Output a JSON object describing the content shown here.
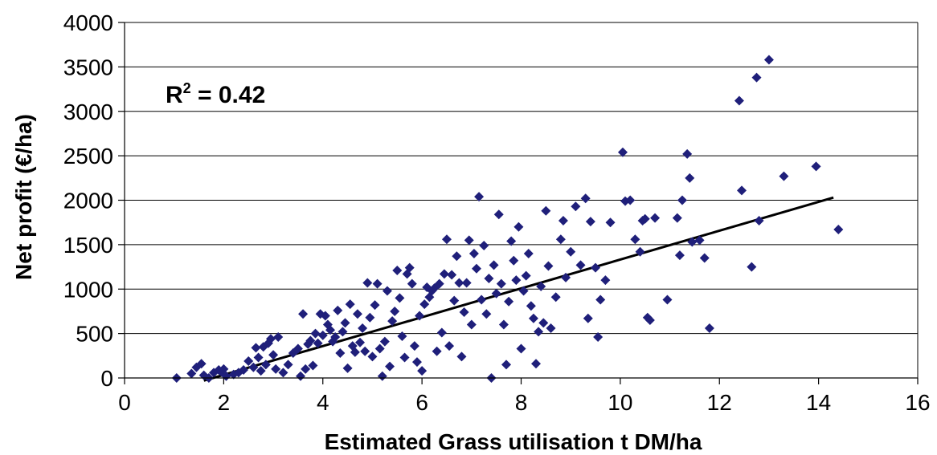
{
  "chart_data": {
    "type": "scatter",
    "title": "",
    "xlabel": "Estimated Grass utilisation t DM/ha",
    "ylabel": "Net profit (€/ha)",
    "xlim": [
      0,
      16
    ],
    "ylim": [
      0,
      4000
    ],
    "x_ticks": [
      "0",
      "2",
      "4",
      "6",
      "8",
      "10",
      "12",
      "14",
      "16"
    ],
    "y_ticks": [
      "0",
      "500",
      "1000",
      "1500",
      "2000",
      "2500",
      "3000",
      "3500",
      "4000"
    ],
    "grid": "horizontal",
    "legend": "none",
    "annotation": {
      "prefix": "R",
      "superscript": "2",
      "suffix": " = 0.42"
    },
    "colors": {
      "points": "#1f1f7a",
      "trendline": "#000000",
      "grid": "#000000"
    },
    "trendline": {
      "x": [
        1.6,
        14.3
      ],
      "y": [
        -30,
        2030
      ]
    },
    "series": [
      {
        "marker": "diamond",
        "points": [
          [
            1.05,
            0
          ],
          [
            1.35,
            50
          ],
          [
            1.45,
            120
          ],
          [
            1.55,
            160
          ],
          [
            1.6,
            30
          ],
          [
            1.7,
            0
          ],
          [
            1.8,
            60
          ],
          [
            1.9,
            90
          ],
          [
            1.95,
            70
          ],
          [
            2.0,
            100
          ],
          [
            2.05,
            20
          ],
          [
            2.2,
            40
          ],
          [
            2.3,
            60
          ],
          [
            2.4,
            90
          ],
          [
            2.5,
            190
          ],
          [
            2.6,
            120
          ],
          [
            2.65,
            340
          ],
          [
            2.7,
            230
          ],
          [
            2.75,
            80
          ],
          [
            2.8,
            350
          ],
          [
            2.85,
            150
          ],
          [
            2.9,
            390
          ],
          [
            2.95,
            440
          ],
          [
            3.0,
            260
          ],
          [
            3.05,
            100
          ],
          [
            3.1,
            460
          ],
          [
            3.2,
            60
          ],
          [
            3.3,
            150
          ],
          [
            3.4,
            280
          ],
          [
            3.5,
            330
          ],
          [
            3.55,
            20
          ],
          [
            3.6,
            720
          ],
          [
            3.65,
            100
          ],
          [
            3.7,
            380
          ],
          [
            3.75,
            420
          ],
          [
            3.8,
            140
          ],
          [
            3.85,
            500
          ],
          [
            3.9,
            390
          ],
          [
            3.95,
            720
          ],
          [
            4.0,
            480
          ],
          [
            4.05,
            700
          ],
          [
            4.1,
            600
          ],
          [
            4.15,
            540
          ],
          [
            4.2,
            410
          ],
          [
            4.25,
            460
          ],
          [
            4.3,
            760
          ],
          [
            4.35,
            280
          ],
          [
            4.4,
            520
          ],
          [
            4.45,
            620
          ],
          [
            4.5,
            110
          ],
          [
            4.55,
            830
          ],
          [
            4.6,
            360
          ],
          [
            4.65,
            290
          ],
          [
            4.7,
            720
          ],
          [
            4.75,
            400
          ],
          [
            4.8,
            560
          ],
          [
            4.85,
            300
          ],
          [
            4.9,
            1070
          ],
          [
            4.95,
            680
          ],
          [
            5.0,
            240
          ],
          [
            5.05,
            820
          ],
          [
            5.1,
            1060
          ],
          [
            5.15,
            330
          ],
          [
            5.2,
            20
          ],
          [
            5.25,
            410
          ],
          [
            5.3,
            980
          ],
          [
            5.35,
            130
          ],
          [
            5.4,
            640
          ],
          [
            5.45,
            750
          ],
          [
            5.5,
            1210
          ],
          [
            5.55,
            900
          ],
          [
            5.6,
            470
          ],
          [
            5.65,
            230
          ],
          [
            5.7,
            1170
          ],
          [
            5.75,
            1240
          ],
          [
            5.8,
            1060
          ],
          [
            5.85,
            360
          ],
          [
            5.9,
            180
          ],
          [
            5.95,
            700
          ],
          [
            6.0,
            80
          ],
          [
            6.05,
            830
          ],
          [
            6.1,
            1020
          ],
          [
            6.15,
            910
          ],
          [
            6.2,
            980
          ],
          [
            6.25,
            1010
          ],
          [
            6.3,
            300
          ],
          [
            6.35,
            1060
          ],
          [
            6.4,
            510
          ],
          [
            6.45,
            1170
          ],
          [
            6.5,
            1560
          ],
          [
            6.55,
            360
          ],
          [
            6.6,
            1160
          ],
          [
            6.65,
            870
          ],
          [
            6.7,
            1370
          ],
          [
            6.75,
            1070
          ],
          [
            6.8,
            240
          ],
          [
            6.85,
            740
          ],
          [
            6.9,
            1070
          ],
          [
            6.95,
            1550
          ],
          [
            7.0,
            600
          ],
          [
            7.05,
            1400
          ],
          [
            7.1,
            1230
          ],
          [
            7.15,
            2040
          ],
          [
            7.2,
            880
          ],
          [
            7.25,
            1490
          ],
          [
            7.3,
            720
          ],
          [
            7.35,
            1120
          ],
          [
            7.4,
            0
          ],
          [
            7.45,
            1270
          ],
          [
            7.5,
            950
          ],
          [
            7.55,
            1840
          ],
          [
            7.6,
            1060
          ],
          [
            7.65,
            600
          ],
          [
            7.7,
            150
          ],
          [
            7.75,
            860
          ],
          [
            7.8,
            1540
          ],
          [
            7.85,
            1320
          ],
          [
            7.9,
            1100
          ],
          [
            7.95,
            1700
          ],
          [
            8.0,
            330
          ],
          [
            8.05,
            980
          ],
          [
            8.1,
            1150
          ],
          [
            8.15,
            1400
          ],
          [
            8.2,
            810
          ],
          [
            8.25,
            670
          ],
          [
            8.3,
            160
          ],
          [
            8.35,
            520
          ],
          [
            8.4,
            1030
          ],
          [
            8.45,
            620
          ],
          [
            8.5,
            1880
          ],
          [
            8.55,
            1260
          ],
          [
            8.6,
            560
          ],
          [
            8.7,
            910
          ],
          [
            8.8,
            1560
          ],
          [
            8.85,
            1770
          ],
          [
            8.9,
            1130
          ],
          [
            9.0,
            1420
          ],
          [
            9.1,
            1930
          ],
          [
            9.2,
            1270
          ],
          [
            9.3,
            2020
          ],
          [
            9.35,
            670
          ],
          [
            9.4,
            1760
          ],
          [
            9.5,
            1240
          ],
          [
            9.55,
            460
          ],
          [
            9.6,
            880
          ],
          [
            9.7,
            1100
          ],
          [
            9.8,
            1750
          ],
          [
            10.05,
            2540
          ],
          [
            10.1,
            1990
          ],
          [
            10.2,
            2000
          ],
          [
            10.3,
            1560
          ],
          [
            10.4,
            1420
          ],
          [
            10.45,
            1770
          ],
          [
            10.5,
            1790
          ],
          [
            10.55,
            680
          ],
          [
            10.6,
            650
          ],
          [
            10.7,
            1800
          ],
          [
            10.95,
            880
          ],
          [
            11.15,
            1800
          ],
          [
            11.2,
            1380
          ],
          [
            11.25,
            2000
          ],
          [
            11.35,
            2520
          ],
          [
            11.4,
            2250
          ],
          [
            11.45,
            1530
          ],
          [
            11.6,
            1550
          ],
          [
            11.7,
            1350
          ],
          [
            11.8,
            560
          ],
          [
            12.4,
            3120
          ],
          [
            12.45,
            2110
          ],
          [
            12.65,
            1250
          ],
          [
            12.75,
            3380
          ],
          [
            12.8,
            1770
          ],
          [
            13.0,
            3580
          ],
          [
            13.3,
            2270
          ],
          [
            13.95,
            2380
          ],
          [
            14.4,
            1670
          ]
        ]
      }
    ]
  }
}
